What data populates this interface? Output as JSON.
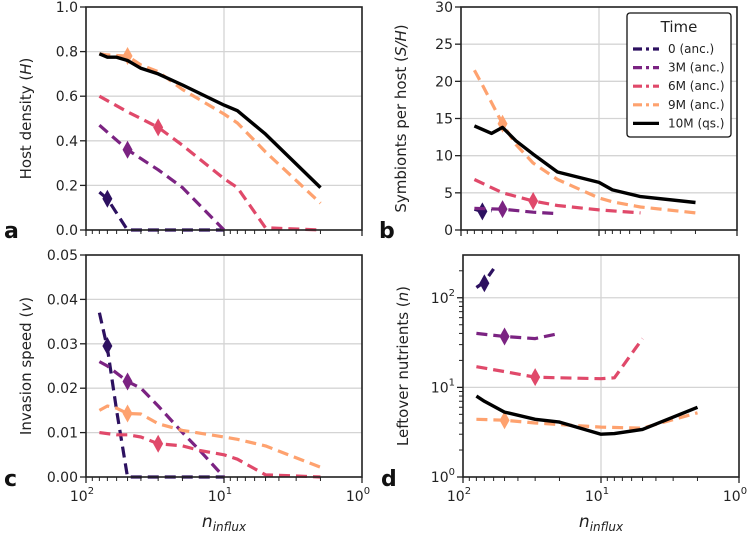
{
  "colors": {
    "0 (anc.)": "#2d1160",
    "3M (anc.)": "#7b2382",
    "6M (anc.)": "#e0496a",
    "9M (anc.)": "#fea26f",
    "10M (qs.)": "#000000"
  },
  "legend": {
    "title": "Time",
    "entries": [
      "0 (anc.)",
      "3M (anc.)",
      "6M (anc.)",
      "9M (anc.)",
      "10M (qs.)"
    ]
  },
  "chart_data": [
    {
      "type": "line",
      "panel_label": "a",
      "ylabel": [
        "Host density (",
        "H",
        ")"
      ],
      "xlabel": null,
      "yscale": "linear",
      "ylim": [
        0,
        1.0
      ],
      "yticks": [
        0,
        0.2,
        0.4,
        0.6,
        0.8,
        1.0
      ],
      "yticklabels": [
        "0.0",
        "0.2",
        "0.4",
        "0.6",
        "0.8",
        "1.0"
      ],
      "xscale": "log",
      "xlim": [
        100,
        1
      ],
      "xticks": [
        100,
        10,
        1
      ],
      "xticklabels": null,
      "series": [
        {
          "name": "0 (anc.)",
          "points": [
            [
              80,
              0.17
            ],
            [
              70,
              0.14
            ],
            [
              50,
              0
            ],
            [
              30,
              0
            ],
            [
              10,
              0
            ]
          ],
          "marker": [
            70,
            0.14
          ]
        },
        {
          "name": "3M (anc.)",
          "points": [
            [
              80,
              0.47
            ],
            [
              50,
              0.36
            ],
            [
              40,
              0.32
            ],
            [
              30,
              0.27
            ],
            [
              20,
              0.19
            ],
            [
              10,
              0
            ]
          ],
          "marker": [
            50,
            0.36
          ]
        },
        {
          "name": "6M (anc.)",
          "points": [
            [
              80,
              0.6
            ],
            [
              50,
              0.53
            ],
            [
              40,
              0.5
            ],
            [
              30,
              0.46
            ],
            [
              20,
              0.38
            ],
            [
              10,
              0.23
            ],
            [
              8,
              0.19
            ],
            [
              5,
              0.01
            ],
            [
              2,
              0
            ]
          ],
          "marker": [
            30,
            0.46
          ]
        },
        {
          "name": "9M (anc.)",
          "points": [
            [
              80,
              0.79
            ],
            [
              70,
              0.785
            ],
            [
              50,
              0.78
            ],
            [
              40,
              0.74
            ],
            [
              30,
              0.71
            ],
            [
              20,
              0.63
            ],
            [
              10,
              0.52
            ],
            [
              8,
              0.48
            ],
            [
              5,
              0.35
            ],
            [
              2,
              0.12
            ]
          ],
          "marker": [
            50,
            0.78
          ]
        },
        {
          "name": "10M (qs.)",
          "points": [
            [
              80,
              0.79
            ],
            [
              70,
              0.775
            ],
            [
              60,
              0.775
            ],
            [
              50,
              0.76
            ],
            [
              40,
              0.725
            ],
            [
              30,
              0.7
            ],
            [
              20,
              0.65
            ],
            [
              10,
              0.56
            ],
            [
              8,
              0.535
            ],
            [
              5,
              0.43
            ],
            [
              2,
              0.19
            ]
          ],
          "marker": null
        }
      ]
    },
    {
      "type": "line",
      "panel_label": "b",
      "ylabel": [
        "Symbionts per host (",
        "S/H",
        ")"
      ],
      "xlabel": null,
      "yscale": "linear",
      "ylim": [
        0,
        30
      ],
      "yticks": [
        0,
        5,
        10,
        15,
        20,
        25,
        30
      ],
      "yticklabels": [
        "0",
        "5",
        "10",
        "15",
        "20",
        "25",
        "30"
      ],
      "xscale": "log",
      "xlim": [
        100,
        1
      ],
      "xticks": [
        100,
        10,
        1
      ],
      "xticklabels": null,
      "series": [
        {
          "name": "0 (anc.)",
          "points": [
            [
              80,
              2.8
            ],
            [
              70,
              2.5
            ],
            [
              60,
              2.6
            ]
          ],
          "marker": [
            70,
            2.5
          ]
        },
        {
          "name": "3M (anc.)",
          "points": [
            [
              80,
              2.9
            ],
            [
              50,
              2.8
            ],
            [
              30,
              2.4
            ],
            [
              20,
              2.2
            ]
          ],
          "marker": [
            50,
            2.8
          ]
        },
        {
          "name": "6M (anc.)",
          "points": [
            [
              80,
              6.8
            ],
            [
              50,
              5
            ],
            [
              30,
              3.9
            ],
            [
              20,
              3.3
            ],
            [
              10,
              2.7
            ],
            [
              5,
              2.3
            ]
          ],
          "marker": [
            30,
            3.9
          ]
        },
        {
          "name": "9M (anc.)",
          "points": [
            [
              80,
              21.5
            ],
            [
              70,
              19.5
            ],
            [
              50,
              14.3
            ],
            [
              40,
              11.5
            ],
            [
              30,
              9
            ],
            [
              20,
              6.8
            ],
            [
              10,
              4.3
            ],
            [
              8,
              3.8
            ],
            [
              5,
              3.1
            ],
            [
              2,
              2.3
            ]
          ],
          "marker": [
            50,
            14.3
          ]
        },
        {
          "name": "10M (qs.)",
          "points": [
            [
              80,
              14
            ],
            [
              60,
              13
            ],
            [
              50,
              13.8
            ],
            [
              40,
              12
            ],
            [
              30,
              10.2
            ],
            [
              20,
              7.8
            ],
            [
              10,
              6.4
            ],
            [
              8,
              5.4
            ],
            [
              5,
              4.5
            ],
            [
              2,
              3.7
            ]
          ],
          "marker": null
        }
      ]
    },
    {
      "type": "line",
      "panel_label": "c",
      "ylabel": [
        "Invasion speed (",
        "v",
        ")"
      ],
      "xlabel": [
        "n",
        "influx"
      ],
      "yscale": "linear",
      "ylim": [
        0,
        0.05
      ],
      "yticks": [
        0,
        0.01,
        0.02,
        0.03,
        0.04,
        0.05
      ],
      "yticklabels": [
        "0.00",
        "0.01",
        "0.02",
        "0.03",
        "0.04",
        "0.05"
      ],
      "xscale": "log",
      "xlim": [
        100,
        1
      ],
      "xticks": [
        100,
        10,
        1
      ],
      "xticklabels": [
        {
          "base": "10",
          "exp": "2"
        },
        {
          "base": "10",
          "exp": "1"
        },
        {
          "base": "10",
          "exp": "0"
        }
      ],
      "series": [
        {
          "name": "0 (anc.)",
          "points": [
            [
              80,
              0.037
            ],
            [
              70,
              0.029
            ],
            [
              60,
              0.015
            ],
            [
              50,
              0
            ],
            [
              30,
              0
            ],
            [
              10,
              0
            ]
          ],
          "marker": [
            70,
            0.0295
          ]
        },
        {
          "name": "3M (anc.)",
          "points": [
            [
              80,
              0.026
            ],
            [
              70,
              0.025
            ],
            [
              50,
              0.0215
            ],
            [
              40,
              0.02
            ],
            [
              30,
              0.016
            ],
            [
              20,
              0.01
            ],
            [
              15,
              0.006
            ],
            [
              10,
              0
            ]
          ],
          "marker": [
            50,
            0.0215
          ]
        },
        {
          "name": "6M (anc.)",
          "points": [
            [
              80,
              0.01
            ],
            [
              60,
              0.0095
            ],
            [
              50,
              0.0095
            ],
            [
              40,
              0.009
            ],
            [
              30,
              0.0075
            ],
            [
              20,
              0.007
            ],
            [
              15,
              0.006
            ],
            [
              10,
              0.005
            ],
            [
              8,
              0.004
            ],
            [
              5,
              0.0005
            ],
            [
              2,
              0
            ]
          ],
          "marker": [
            30,
            0.0075
          ]
        },
        {
          "name": "9M (anc.)",
          "points": [
            [
              80,
              0.015
            ],
            [
              70,
              0.016
            ],
            [
              60,
              0.0155
            ],
            [
              50,
              0.0143
            ],
            [
              40,
              0.0142
            ],
            [
              30,
              0.012
            ],
            [
              20,
              0.0105
            ],
            [
              10,
              0.009
            ],
            [
              8,
              0.0085
            ],
            [
              5,
              0.007
            ],
            [
              2,
              0.0022
            ]
          ],
          "marker": [
            50,
            0.0143
          ]
        }
      ]
    },
    {
      "type": "line",
      "panel_label": "d",
      "ylabel": [
        "Leftover nutrients (",
        "n",
        ")"
      ],
      "xlabel": [
        "n",
        "influx"
      ],
      "yscale": "log",
      "ylim": [
        1,
        300
      ],
      "yticks": [
        1,
        10,
        100
      ],
      "yticklabels": [
        {
          "base": "10",
          "exp": "0"
        },
        {
          "base": "10",
          "exp": "1"
        },
        {
          "base": "10",
          "exp": "2"
        }
      ],
      "xscale": "log",
      "xlim": [
        100,
        1
      ],
      "xticks": [
        100,
        10,
        1
      ],
      "xticklabels": [
        {
          "base": "10",
          "exp": "2"
        },
        {
          "base": "10",
          "exp": "1"
        },
        {
          "base": "10",
          "exp": "0"
        }
      ],
      "series": [
        {
          "name": "0 (anc.)",
          "points": [
            [
              80,
              130
            ],
            [
              70,
              150
            ],
            [
              60,
              210
            ]
          ],
          "marker": [
            70,
            145
          ]
        },
        {
          "name": "3M (anc.)",
          "points": [
            [
              80,
              40
            ],
            [
              50,
              37
            ],
            [
              30,
              35
            ],
            [
              20,
              40
            ]
          ],
          "marker": [
            50,
            37
          ]
        },
        {
          "name": "6M (anc.)",
          "points": [
            [
              80,
              17
            ],
            [
              50,
              15
            ],
            [
              30,
              13
            ],
            [
              20,
              12.8
            ],
            [
              10,
              12.5
            ],
            [
              8,
              12.8
            ],
            [
              5,
              35
            ]
          ],
          "marker": [
            30,
            13
          ]
        },
        {
          "name": "9M (anc.)",
          "points": [
            [
              80,
              4.4
            ],
            [
              50,
              4.3
            ],
            [
              30,
              4
            ],
            [
              10,
              3.6
            ],
            [
              5,
              3.5
            ],
            [
              2,
              5.2
            ]
          ],
          "marker": [
            50,
            4.3
          ]
        },
        {
          "name": "10M (qs.)",
          "points": [
            [
              80,
              8
            ],
            [
              70,
              7
            ],
            [
              50,
              5.3
            ],
            [
              30,
              4.4
            ],
            [
              20,
              4.1
            ],
            [
              10,
              3
            ],
            [
              8,
              3.05
            ],
            [
              5,
              3.4
            ],
            [
              2,
              6
            ]
          ],
          "marker": null
        }
      ]
    }
  ]
}
